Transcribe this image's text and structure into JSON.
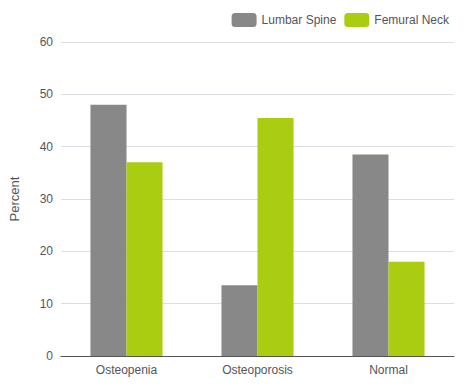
{
  "chart_data": {
    "type": "bar",
    "categories": [
      "Osteopenia",
      "Osteoporosis",
      "Normal"
    ],
    "series": [
      {
        "name": "Lumbar Spine",
        "color": "#888888",
        "values": [
          48,
          13.5,
          38.5
        ]
      },
      {
        "name": "Femural Neck",
        "color": "#AACC11",
        "values": [
          37,
          45.5,
          18
        ]
      }
    ],
    "ylabel": "Percent",
    "ylim": [
      0,
      60
    ],
    "yticks": [
      0,
      10,
      20,
      30,
      40,
      50,
      60
    ],
    "grid": true,
    "legend": "upper right"
  }
}
